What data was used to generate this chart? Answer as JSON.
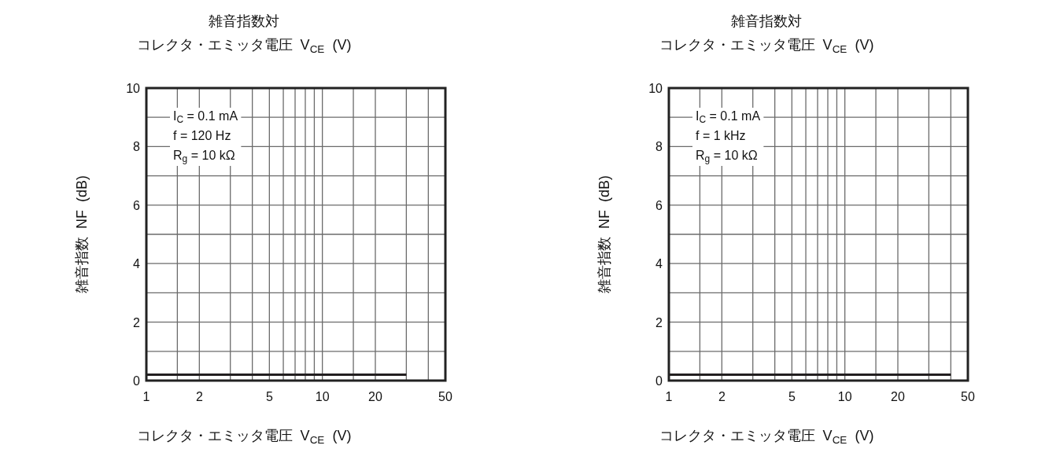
{
  "chart_data": [
    {
      "type": "line",
      "title": "雑音指数対",
      "subtitle": "コレクタ・エミッタ電圧  V$_{CE}$  (V)",
      "xlabel": "コレクタ・エミッタ電圧  V$_{CE}$  (V)",
      "ylabel": "雑音指数  NF  (dB)",
      "log": "x",
      "grid": true,
      "xlim": [
        1,
        50
      ],
      "ylim": [
        0,
        10
      ],
      "xticks": [
        1,
        {
          "value": 1.5,
          "label": null
        },
        2,
        {
          "value": 3,
          "label": null
        },
        {
          "value": 4,
          "label": null
        },
        5,
        {
          "value": 6,
          "label": null
        },
        {
          "value": 7,
          "label": null
        },
        {
          "value": 8,
          "label": null
        },
        {
          "value": 9,
          "label": null
        },
        10,
        {
          "value": 15,
          "label": null
        },
        20,
        {
          "value": 30,
          "label": null
        },
        {
          "value": 40,
          "label": null
        },
        50
      ],
      "yticks": [
        0,
        {
          "value": 1,
          "label": null
        },
        2,
        {
          "value": 3,
          "label": null
        },
        4,
        {
          "value": 5,
          "label": null
        },
        6,
        {
          "value": 7,
          "label": null
        },
        8,
        {
          "value": 9,
          "label": null
        },
        10
      ],
      "annotations": [
        "I$_{C}$ = 0.1 mA\nf = 120 Hz\nR$_{g}$ = 10 kΩ"
      ],
      "series": [
        {
          "color": "#231f20",
          "x": [
            1,
            30
          ],
          "values": [
            0.2,
            0.2
          ]
        }
      ]
    },
    {
      "type": "line",
      "title": "雑音指数対",
      "subtitle": "コレクタ・エミッタ電圧  V$_{CE}$  (V)",
      "xlabel": "コレクタ・エミッタ電圧  V$_{CE}$  (V)",
      "ylabel": "雑音指数  NF  (dB)",
      "log": "x",
      "grid": true,
      "xlim": [
        1,
        50
      ],
      "ylim": [
        0,
        10
      ],
      "xticks": [
        1,
        {
          "value": 1.5,
          "label": null
        },
        2,
        {
          "value": 3,
          "label": null
        },
        {
          "value": 4,
          "label": null
        },
        5,
        {
          "value": 6,
          "label": null
        },
        {
          "value": 7,
          "label": null
        },
        {
          "value": 8,
          "label": null
        },
        {
          "value": 9,
          "label": null
        },
        10,
        {
          "value": 15,
          "label": null
        },
        20,
        {
          "value": 30,
          "label": null
        },
        {
          "value": 40,
          "label": null
        },
        50
      ],
      "yticks": [
        0,
        {
          "value": 1,
          "label": null
        },
        2,
        {
          "value": 3,
          "label": null
        },
        4,
        {
          "value": 5,
          "label": null
        },
        6,
        {
          "value": 7,
          "label": null
        },
        8,
        {
          "value": 9,
          "label": null
        },
        10
      ],
      "annotations": [
        "I$_{C}$ = 0.1 mA\nf = 1 kHz\nR$_{g}$ = 10 kΩ"
      ],
      "series": [
        {
          "color": "#231f20",
          "x": [
            1,
            40
          ],
          "values": [
            0.2,
            0.2
          ]
        }
      ]
    }
  ]
}
